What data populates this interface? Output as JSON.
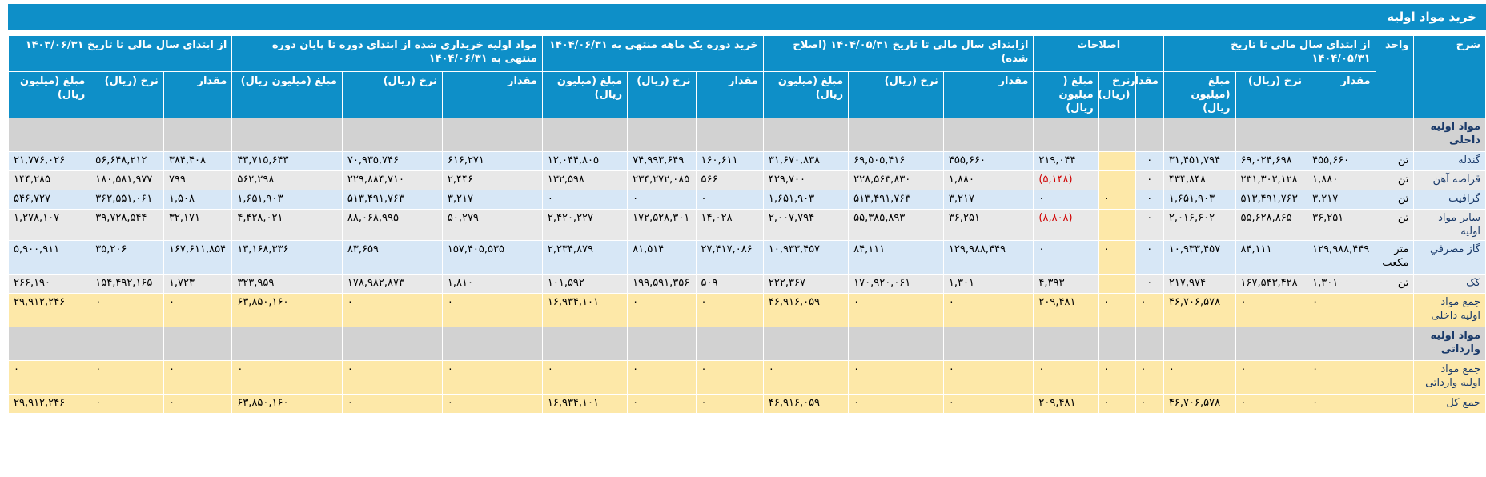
{
  "title": "خرید مواد اولیه",
  "headers": {
    "desc": "شرح",
    "unit": "واحد",
    "groups": [
      "از ابتدای سال مالی تا تاریخ ۱۴۰۴/۰۵/۳۱",
      "اصلاحات",
      "ازابتدای سال مالی تا تاریخ ۱۴۰۴/۰۵/۳۱ (اصلاح شده)",
      "خرید دوره یک ماهه منتهی به ۱۴۰۴/۰۶/۳۱",
      "مواد اولیه خریداری شده از ابتدای دوره تا پایان دوره منتهی به ۱۴۰۴/۰۶/۳۱",
      "از ابتدای سال مالی تا تاریخ ۱۴۰۳/۰۶/۳۱"
    ],
    "sub_std": [
      "مقدار",
      "نرخ (ریال)",
      "مبلغ (میلیون ریال)"
    ],
    "sub_adj": [
      "مقدار",
      "نرخ (ریال)",
      "مبلغ ( میلیون ریال)"
    ]
  },
  "rows": [
    {
      "style": "sec",
      "label": "مواد اولیه داخلی",
      "unit": "",
      "cells": [
        "",
        "",
        "",
        "",
        "",
        "",
        "",
        "",
        "",
        "",
        "",
        "",
        "",
        "",
        "",
        "",
        "",
        ""
      ]
    },
    {
      "style": "blue",
      "label": "گندله",
      "unit": "تن",
      "cells": [
        "۴۵۵,۶۶۰",
        "۶۹,۰۲۴,۶۹۸",
        "۳۱,۴۵۱,۷۹۴",
        "۰",
        "",
        "۲۱۹,۰۴۴",
        "۴۵۵,۶۶۰",
        "۶۹,۵۰۵,۴۱۶",
        "۳۱,۶۷۰,۸۳۸",
        "۱۶۰,۶۱۱",
        "۷۴,۹۹۳,۶۴۹",
        "۱۲,۰۴۴,۸۰۵",
        "۶۱۶,۲۷۱",
        "۷۰,۹۳۵,۷۴۶",
        "۴۳,۷۱۵,۶۴۳",
        "۳۸۴,۴۰۸",
        "۵۶,۶۴۸,۲۱۲",
        "۲۱,۷۷۶,۰۲۶"
      ]
    },
    {
      "style": "grey",
      "label": "قراضه آهن",
      "unit": "تن",
      "cells": [
        "۱,۸۸۰",
        "۲۳۱,۳۰۲,۱۲۸",
        "۴۳۴,۸۴۸",
        "۰",
        "",
        "(۵,۱۴۸)",
        "۱,۸۸۰",
        "۲۲۸,۵۶۳,۸۳۰",
        "۴۲۹,۷۰۰",
        "۵۶۶",
        "۲۳۴,۲۷۲,۰۸۵",
        "۱۳۲,۵۹۸",
        "۲,۴۴۶",
        "۲۲۹,۸۸۴,۷۱۰",
        "۵۶۲,۲۹۸",
        "۷۹۹",
        "۱۸۰,۵۸۱,۹۷۷",
        "۱۴۴,۲۸۵"
      ]
    },
    {
      "style": "blue",
      "label": "گرافیت",
      "unit": "تن",
      "cells": [
        "۳,۲۱۷",
        "۵۱۳,۴۹۱,۷۶۳",
        "۱,۶۵۱,۹۰۳",
        "۰",
        "۰",
        "۰",
        "۳,۲۱۷",
        "۵۱۳,۴۹۱,۷۶۳",
        "۱,۶۵۱,۹۰۳",
        "۰",
        "۰",
        "۰",
        "۳,۲۱۷",
        "۵۱۳,۴۹۱,۷۶۳",
        "۱,۶۵۱,۹۰۳",
        "۱,۵۰۸",
        "۳۶۲,۵۵۱,۰۶۱",
        "۵۴۶,۷۲۷"
      ]
    },
    {
      "style": "grey",
      "label": "سایر مواد اولیه",
      "unit": "تن",
      "cells": [
        "۳۶,۲۵۱",
        "۵۵,۶۲۸,۸۶۵",
        "۲,۰۱۶,۶۰۲",
        "۰",
        "",
        "(۸,۸۰۸)",
        "۳۶,۲۵۱",
        "۵۵,۳۸۵,۸۹۳",
        "۲,۰۰۷,۷۹۴",
        "۱۴,۰۲۸",
        "۱۷۲,۵۲۸,۳۰۱",
        "۲,۴۲۰,۲۲۷",
        "۵۰,۲۷۹",
        "۸۸,۰۶۸,۹۹۵",
        "۴,۴۲۸,۰۲۱",
        "۳۲,۱۷۱",
        "۳۹,۷۲۸,۵۴۴",
        "۱,۲۷۸,۱۰۷"
      ]
    },
    {
      "style": "blue",
      "label": "گاز مصرفي",
      "unit": "متر مکعب",
      "cells": [
        "۱۲۹,۹۸۸,۴۴۹",
        "۸۴,۱۱۱",
        "۱۰,۹۳۳,۴۵۷",
        "۰",
        "۰",
        "۰",
        "۱۲۹,۹۸۸,۴۴۹",
        "۸۴,۱۱۱",
        "۱۰,۹۳۳,۴۵۷",
        "۲۷,۴۱۷,۰۸۶",
        "۸۱,۵۱۴",
        "۲,۲۳۴,۸۷۹",
        "۱۵۷,۴۰۵,۵۳۵",
        "۸۳,۶۵۹",
        "۱۳,۱۶۸,۳۳۶",
        "۱۶۷,۶۱۱,۸۵۴",
        "۳۵,۲۰۶",
        "۵,۹۰۰,۹۱۱"
      ]
    },
    {
      "style": "grey",
      "label": "کک",
      "unit": "تن",
      "cells": [
        "۱,۳۰۱",
        "۱۶۷,۵۴۳,۴۲۸",
        "۲۱۷,۹۷۴",
        "۰",
        "",
        "۴,۳۹۳",
        "۱,۳۰۱",
        "۱۷۰,۹۲۰,۰۶۱",
        "۲۲۲,۳۶۷",
        "۵۰۹",
        "۱۹۹,۵۹۱,۳۵۶",
        "۱۰۱,۵۹۲",
        "۱,۸۱۰",
        "۱۷۸,۹۸۲,۸۷۳",
        "۳۲۳,۹۵۹",
        "۱,۷۲۳",
        "۱۵۴,۴۹۲,۱۶۵",
        "۲۶۶,۱۹۰"
      ]
    },
    {
      "style": "yel",
      "label": "جمع مواد اولیه داخلی",
      "unit": "",
      "cells": [
        "۰",
        "۰",
        "۴۶,۷۰۶,۵۷۸",
        "۰",
        "۰",
        "۲۰۹,۴۸۱",
        "۰",
        "۰",
        "۴۶,۹۱۶,۰۵۹",
        "۰",
        "۰",
        "۱۶,۹۳۴,۱۰۱",
        "۰",
        "۰",
        "۶۳,۸۵۰,۱۶۰",
        "۰",
        "۰",
        "۲۹,۹۱۲,۲۴۶"
      ]
    },
    {
      "style": "sec",
      "label": "مواد اولیه وارداتی",
      "unit": "",
      "cells": [
        "",
        "",
        "",
        "",
        "",
        "",
        "",
        "",
        "",
        "",
        "",
        "",
        "",
        "",
        "",
        "",
        "",
        ""
      ]
    },
    {
      "style": "yel",
      "label": "جمع مواد اولیه وارداتی",
      "unit": "",
      "cells": [
        "۰",
        "۰",
        "۰",
        "۰",
        "۰",
        "۰",
        "۰",
        "۰",
        "۰",
        "۰",
        "۰",
        "۰",
        "۰",
        "۰",
        "۰",
        "۰",
        "۰",
        "۰"
      ]
    },
    {
      "style": "yel",
      "label": "جمع کل",
      "unit": "",
      "cells": [
        "۰",
        "۰",
        "۴۶,۷۰۶,۵۷۸",
        "۰",
        "۰",
        "۲۰۹,۴۸۱",
        "۰",
        "۰",
        "۴۶,۹۱۶,۰۵۹",
        "۰",
        "۰",
        "۱۶,۹۳۴,۱۰۱",
        "۰",
        "۰",
        "۶۳,۸۵۰,۱۶۰",
        "۰",
        "۰",
        "۲۹,۹۱۲,۲۴۶"
      ]
    }
  ]
}
